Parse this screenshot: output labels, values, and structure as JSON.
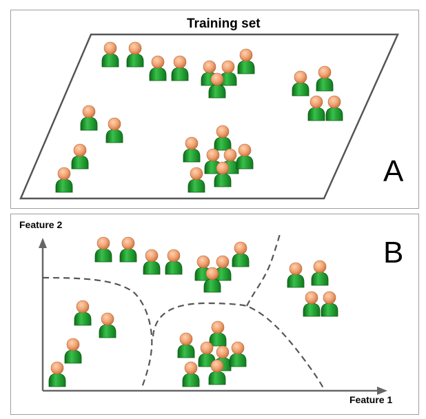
{
  "panel_a": {
    "title": "Training set",
    "letter": "A"
  },
  "panel_b": {
    "letter": "B",
    "x_axis_label": "Feature 1",
    "y_axis_label": "Feature 2"
  },
  "colors": {
    "head": "#f0a070",
    "body": "#1e9a2a",
    "line": "#555555"
  },
  "person_icon": "person-icon"
}
